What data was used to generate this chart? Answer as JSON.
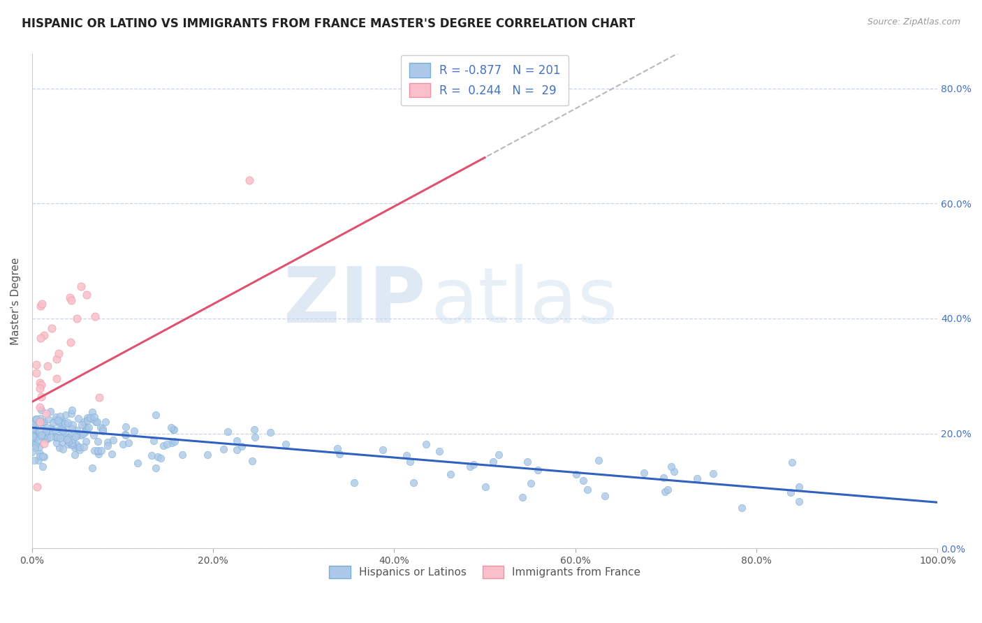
{
  "title": "HISPANIC OR LATINO VS IMMIGRANTS FROM FRANCE MASTER'S DEGREE CORRELATION CHART",
  "source": "Source: ZipAtlas.com",
  "ylabel": "Master's Degree",
  "xmin": 0.0,
  "xmax": 1.0,
  "ymin": 0.0,
  "ymax": 0.86,
  "yticks": [
    0.0,
    0.2,
    0.4,
    0.6,
    0.8
  ],
  "ytick_labels": [
    "0.0%",
    "20.0%",
    "40.0%",
    "60.0%",
    "80.0%"
  ],
  "xticks": [
    0.0,
    0.2,
    0.4,
    0.6,
    0.8,
    1.0
  ],
  "xtick_labels": [
    "0.0%",
    "20.0%",
    "40.0%",
    "60.0%",
    "80.0%",
    "100.0%"
  ],
  "blue_color": "#adc8e8",
  "blue_edge": "#7aafd4",
  "pink_color": "#f9c0cb",
  "pink_edge": "#f090a0",
  "blue_line_color": "#3060c0",
  "pink_line_color": "#e05070",
  "grey_line_color": "#b8b8b8",
  "R_blue": -0.877,
  "N_blue": 201,
  "R_pink": 0.244,
  "N_pink": 29,
  "legend_label_blue": "Hispanics or Latinos",
  "legend_label_pink": "Immigrants from France",
  "watermark_zip": "ZIP",
  "watermark_atlas": "atlas",
  "annotation_color": "#4472c4",
  "background_color": "#ffffff",
  "grid_color": "#c8d4e8",
  "title_fontsize": 12,
  "axis_label_fontsize": 11,
  "tick_fontsize": 10,
  "legend_fontsize": 12
}
